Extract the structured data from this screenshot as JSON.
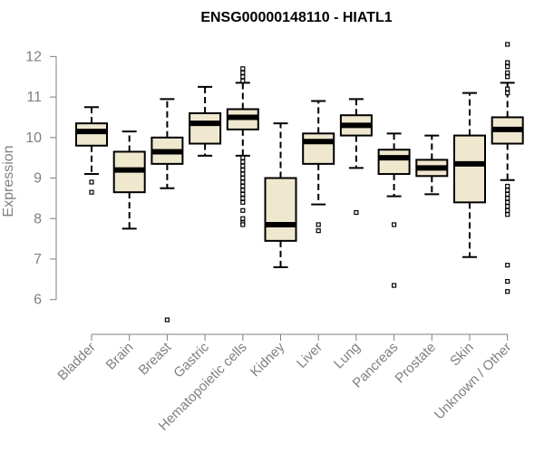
{
  "chart_data": {
    "type": "boxplot",
    "title": "ENSG00000148110 - HIATL1",
    "xlabel": "",
    "ylabel": "Expression",
    "ylim": [
      5.3,
      12.5
    ],
    "yticks": [
      6,
      7,
      8,
      9,
      10,
      11,
      12
    ],
    "colors": {
      "box_fill": "#efe8cf",
      "stroke": "#000000",
      "axis": "#808080"
    },
    "categories": [
      "Bladder",
      "Brain",
      "Breast",
      "Gastric",
      "Hematopoietic cells",
      "Kidney",
      "Liver",
      "Lung",
      "Pancreas",
      "Prostate",
      "Skin",
      "Unknown / Other"
    ],
    "boxes": [
      {
        "name": "Bladder",
        "whisker_low": 9.1,
        "q1": 9.8,
        "median": 10.15,
        "q3": 10.35,
        "whisker_high": 10.75,
        "outliers": [
          8.9,
          8.65
        ]
      },
      {
        "name": "Brain",
        "whisker_low": 7.75,
        "q1": 8.65,
        "median": 9.2,
        "q3": 9.65,
        "whisker_high": 10.15,
        "outliers": []
      },
      {
        "name": "Breast",
        "whisker_low": 8.75,
        "q1": 9.35,
        "median": 9.65,
        "q3": 10.0,
        "whisker_high": 10.95,
        "outliers": [
          5.5
        ]
      },
      {
        "name": "Gastric",
        "whisker_low": 9.55,
        "q1": 9.85,
        "median": 10.35,
        "q3": 10.6,
        "whisker_high": 11.25,
        "outliers": []
      },
      {
        "name": "Hematopoietic cells",
        "whisker_low": 9.55,
        "q1": 10.2,
        "median": 10.5,
        "q3": 10.7,
        "whisker_high": 11.35,
        "outliers": [
          11.7,
          11.6,
          11.5,
          11.4,
          9.5,
          9.4,
          9.3,
          9.2,
          9.1,
          9.0,
          8.9,
          8.8,
          8.7,
          8.6,
          8.5,
          8.4,
          8.2,
          8.0,
          7.9,
          7.85
        ]
      },
      {
        "name": "Kidney",
        "whisker_low": 6.8,
        "q1": 7.45,
        "median": 7.85,
        "q3": 9.0,
        "whisker_high": 10.35,
        "outliers": []
      },
      {
        "name": "Liver",
        "whisker_low": 8.35,
        "q1": 9.35,
        "median": 9.9,
        "q3": 10.1,
        "whisker_high": 10.9,
        "outliers": [
          7.85,
          7.7
        ]
      },
      {
        "name": "Lung",
        "whisker_low": 9.25,
        "q1": 10.05,
        "median": 10.3,
        "q3": 10.55,
        "whisker_high": 10.95,
        "outliers": [
          8.15
        ]
      },
      {
        "name": "Pancreas",
        "whisker_low": 8.55,
        "q1": 9.1,
        "median": 9.5,
        "q3": 9.7,
        "whisker_high": 10.1,
        "outliers": [
          7.85,
          6.35
        ]
      },
      {
        "name": "Prostate",
        "whisker_low": 8.6,
        "q1": 9.05,
        "median": 9.25,
        "q3": 9.45,
        "whisker_high": 10.05,
        "outliers": []
      },
      {
        "name": "Skin",
        "whisker_low": 7.05,
        "q1": 8.4,
        "median": 9.35,
        "q3": 10.05,
        "whisker_high": 11.1,
        "outliers": []
      },
      {
        "name": "Unknown / Other",
        "whisker_low": 8.95,
        "q1": 9.85,
        "median": 10.2,
        "q3": 10.5,
        "whisker_high": 11.35,
        "outliers": [
          12.3,
          11.85,
          11.75,
          11.6,
          11.5,
          11.2,
          11.1,
          8.8,
          8.7,
          8.6,
          8.5,
          8.4,
          8.3,
          8.2,
          8.1,
          6.85,
          6.45,
          6.2
        ]
      }
    ]
  }
}
